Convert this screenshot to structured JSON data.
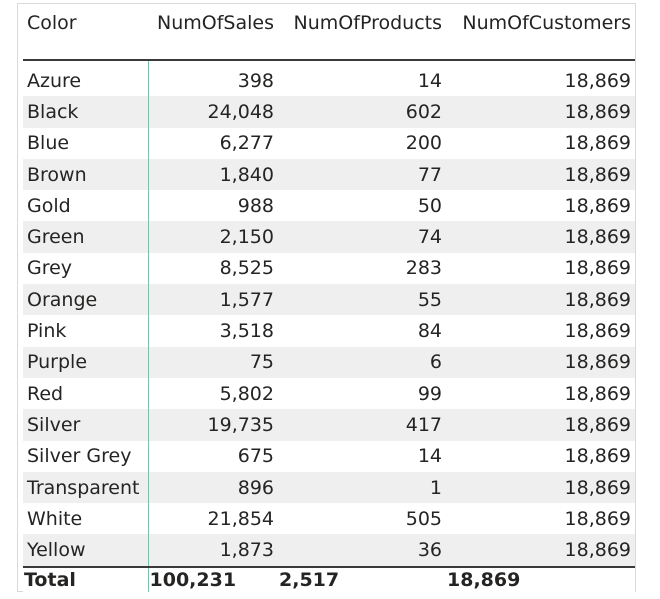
{
  "table": {
    "columns": [
      "Color",
      "NumOfSales",
      "NumOfProducts",
      "NumOfCustomers"
    ],
    "rows": [
      [
        "Azure",
        "398",
        "14",
        "18,869"
      ],
      [
        "Black",
        "24,048",
        "602",
        "18,869"
      ],
      [
        "Blue",
        "6,277",
        "200",
        "18,869"
      ],
      [
        "Brown",
        "1,840",
        "77",
        "18,869"
      ],
      [
        "Gold",
        "988",
        "50",
        "18,869"
      ],
      [
        "Green",
        "2,150",
        "74",
        "18,869"
      ],
      [
        "Grey",
        "8,525",
        "283",
        "18,869"
      ],
      [
        "Orange",
        "1,577",
        "55",
        "18,869"
      ],
      [
        "Pink",
        "3,518",
        "84",
        "18,869"
      ],
      [
        "Purple",
        "75",
        "6",
        "18,869"
      ],
      [
        "Red",
        "5,802",
        "99",
        "18,869"
      ],
      [
        "Silver",
        "19,735",
        "417",
        "18,869"
      ],
      [
        "Silver Grey",
        "675",
        "14",
        "18,869"
      ],
      [
        "Transparent",
        "896",
        "1",
        "18,869"
      ],
      [
        "White",
        "21,854",
        "505",
        "18,869"
      ],
      [
        "Yellow",
        "1,873",
        "36",
        "18,869"
      ]
    ],
    "total": [
      "Total",
      "100,231",
      "2,517",
      "18,869"
    ]
  },
  "colors": {
    "row_band": "#efefef",
    "header_rule": "#3b3a39",
    "label_divider": "#7ac1a9",
    "frame_border": "#d9d9d9",
    "text": "#252423"
  }
}
